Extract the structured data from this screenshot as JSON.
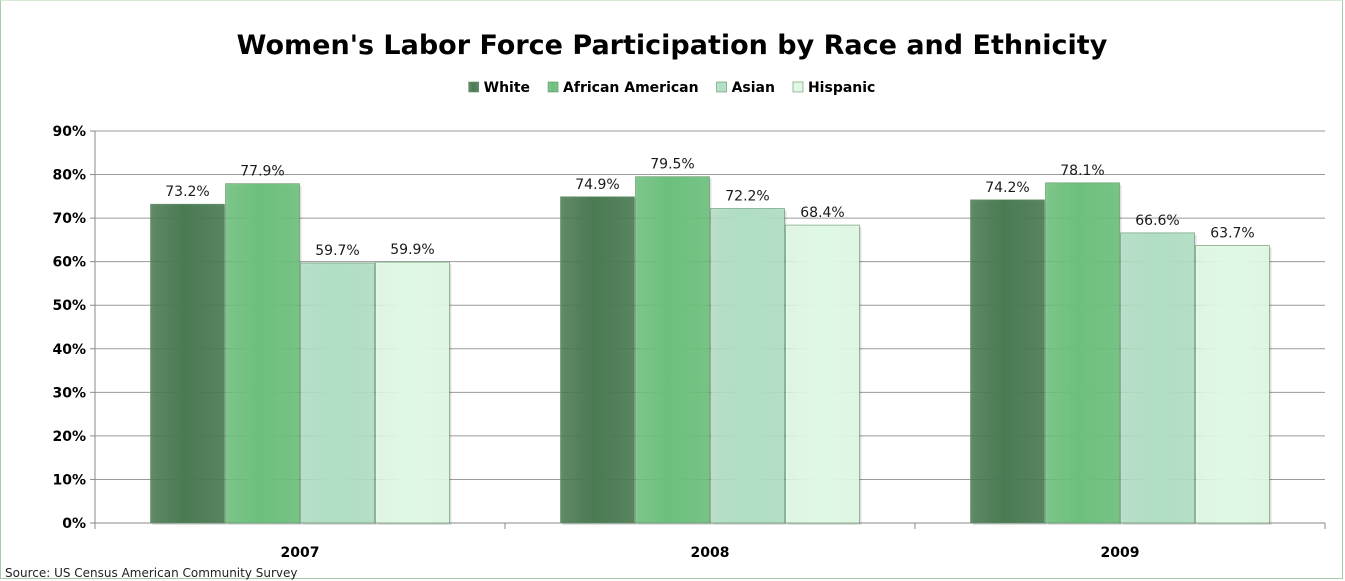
{
  "chart_data": {
    "type": "bar",
    "title": "Women's Labor Force Participation by Race and Ethnicity",
    "categories": [
      "2007",
      "2008",
      "2009"
    ],
    "series": [
      {
        "name": "White",
        "values": [
          73.2,
          74.9,
          74.2
        ],
        "color": "#4a7a52"
      },
      {
        "name": "African American",
        "values": [
          77.9,
          79.5,
          78.1
        ],
        "color": "#6cc07c"
      },
      {
        "name": "Asian",
        "values": [
          59.7,
          72.2,
          66.6
        ],
        "color": "#b0dec4"
      },
      {
        "name": "Hispanic",
        "values": [
          59.9,
          68.4,
          63.7
        ],
        "color": "#dff8e3"
      }
    ],
    "data_labels": [
      [
        "73.2%",
        "74.9%",
        "74.2%"
      ],
      [
        "77.9%",
        "79.5%",
        "78.1%"
      ],
      [
        "59.7%",
        "72.2%",
        "66.6%"
      ],
      [
        "59.9%",
        "68.4%",
        "63.7%"
      ]
    ],
    "ylim": [
      0,
      90
    ],
    "yticks": [
      0,
      10,
      20,
      30,
      40,
      50,
      60,
      70,
      80,
      90
    ],
    "ytick_labels": [
      "0%",
      "10%",
      "20%",
      "30%",
      "40%",
      "50%",
      "60%",
      "70%",
      "80%",
      "90%"
    ],
    "xlabel": "",
    "ylabel": "",
    "grid": true,
    "legend_position": "top"
  },
  "source": "Source: US Census American Community Survey"
}
